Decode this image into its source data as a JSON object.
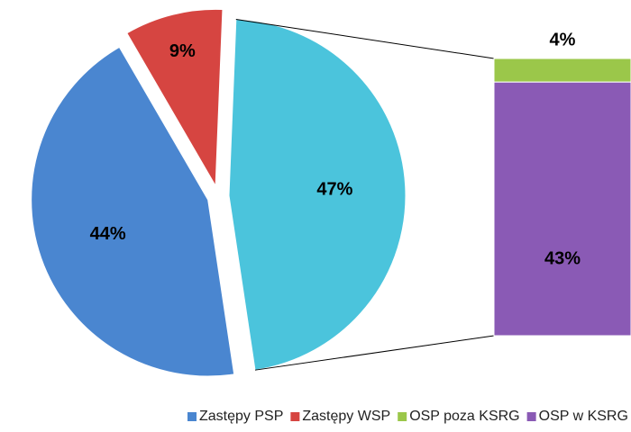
{
  "chart_data": {
    "type": "pie-of-bar",
    "pie": {
      "categories": [
        "Zastępy PSP",
        "Zastępy WSP",
        null
      ],
      "values": [
        44,
        9,
        47
      ],
      "value_labels": [
        "44%",
        "9%",
        "47%"
      ],
      "colors": [
        "#4a86d0",
        "#d64541",
        "#4bc4dc"
      ]
    },
    "bar": {
      "categories": [
        "OSP poza KSRG",
        "OSP w KSRG"
      ],
      "values": [
        4,
        43
      ],
      "value_labels": [
        "4%",
        "43%"
      ],
      "colors": [
        "#9bc74a",
        "#8a5ab5"
      ]
    },
    "legend": "bottom"
  }
}
